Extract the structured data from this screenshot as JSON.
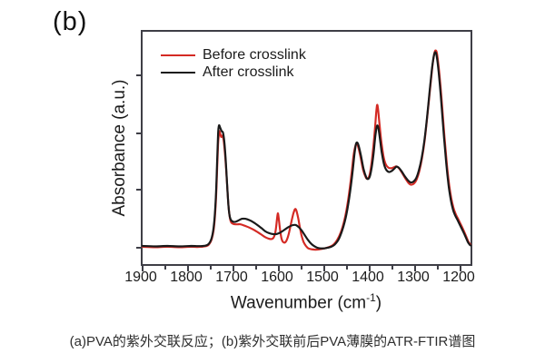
{
  "figure_label": "(b)",
  "caption": "(a)PVA的紫外交联反应；(b)紫外交联前后PVA薄膜的ATR-FTIR谱图",
  "axis_title": {
    "main": "Wavenumber (cm",
    "sup": "-1",
    "close": ")"
  },
  "colors": {
    "before_crosslink": "#d42a24",
    "after_crosslink": "#1a1a1a",
    "axis": "#3e3e46",
    "text": "#1b1b1b",
    "caption": "#2e2e2e"
  },
  "chart_data": {
    "type": "line",
    "title": "",
    "xlabel": "Wavenumber (cm⁻¹)",
    "ylabel": "Absorbance (a.u.)",
    "grid": false,
    "legend_position": "top-left",
    "x_axis": {
      "left": 1900,
      "right": 1170,
      "reversed": true,
      "major_ticks": [
        1900,
        1800,
        1700,
        1600,
        1500,
        1400,
        1300,
        1200
      ],
      "minor_ticks": [
        1850,
        1750,
        1650,
        1550,
        1450,
        1350,
        1250
      ]
    },
    "y_axis": {
      "units": "a.u.",
      "lim": [
        -0.09,
        1.09
      ],
      "ticks": [
        0.87,
        0.58,
        0.3,
        0.01
      ]
    },
    "series": [
      {
        "name": "Before crosslink",
        "color": "#d42a24",
        "points": [
          [
            1900,
            -0.002
          ],
          [
            1872,
            -0.004
          ],
          [
            1845,
            -0.002
          ],
          [
            1818,
            -0.004
          ],
          [
            1792,
            -0.002
          ],
          [
            1775,
            -0.003
          ],
          [
            1762,
            0.0
          ],
          [
            1753,
            0.008
          ],
          [
            1746,
            0.038
          ],
          [
            1741,
            0.1
          ],
          [
            1737,
            0.225
          ],
          [
            1734,
            0.4
          ],
          [
            1732,
            0.52
          ],
          [
            1730,
            0.575
          ],
          [
            1729,
            0.586
          ],
          [
            1727,
            0.57
          ],
          [
            1725,
            0.556
          ],
          [
            1723,
            0.562
          ],
          [
            1720,
            0.545
          ],
          [
            1717,
            0.48
          ],
          [
            1714,
            0.39
          ],
          [
            1711,
            0.28
          ],
          [
            1708,
            0.185
          ],
          [
            1704,
            0.128
          ],
          [
            1698,
            0.114
          ],
          [
            1690,
            0.112
          ],
          [
            1682,
            0.112
          ],
          [
            1673,
            0.105
          ],
          [
            1664,
            0.097
          ],
          [
            1655,
            0.087
          ],
          [
            1646,
            0.075
          ],
          [
            1637,
            0.062
          ],
          [
            1628,
            0.048
          ],
          [
            1620,
            0.04
          ],
          [
            1613,
            0.037
          ],
          [
            1608,
            0.046
          ],
          [
            1604,
            0.078
          ],
          [
            1601,
            0.135
          ],
          [
            1599,
            0.168
          ],
          [
            1597,
            0.143
          ],
          [
            1594,
            0.085
          ],
          [
            1591,
            0.042
          ],
          [
            1588,
            0.024
          ],
          [
            1584,
            0.019
          ],
          [
            1580,
            0.028
          ],
          [
            1575,
            0.06
          ],
          [
            1570,
            0.112
          ],
          [
            1565,
            0.162
          ],
          [
            1561,
            0.188
          ],
          [
            1558,
            0.184
          ],
          [
            1554,
            0.148
          ],
          [
            1550,
            0.098
          ],
          [
            1546,
            0.054
          ],
          [
            1542,
            0.024
          ],
          [
            1537,
            0.004
          ],
          [
            1531,
            -0.01
          ],
          [
            1523,
            -0.015
          ],
          [
            1515,
            -0.017
          ],
          [
            1507,
            -0.015
          ],
          [
            1499,
            -0.012
          ],
          [
            1491,
            -0.008
          ],
          [
            1483,
            -0.002
          ],
          [
            1475,
            0.009
          ],
          [
            1467,
            0.032
          ],
          [
            1459,
            0.07
          ],
          [
            1452,
            0.122
          ],
          [
            1446,
            0.186
          ],
          [
            1440,
            0.275
          ],
          [
            1434,
            0.386
          ],
          [
            1430,
            0.468
          ],
          [
            1426,
            0.512
          ],
          [
            1423,
            0.521
          ],
          [
            1420,
            0.505
          ],
          [
            1415,
            0.456
          ],
          [
            1409,
            0.388
          ],
          [
            1403,
            0.35
          ],
          [
            1399,
            0.344
          ],
          [
            1395,
            0.36
          ],
          [
            1391,
            0.41
          ],
          [
            1387,
            0.49
          ],
          [
            1383,
            0.59
          ],
          [
            1380,
            0.678
          ],
          [
            1378,
            0.718
          ],
          [
            1376,
            0.7
          ],
          [
            1373,
            0.63
          ],
          [
            1369,
            0.54
          ],
          [
            1364,
            0.46
          ],
          [
            1359,
            0.418
          ],
          [
            1353,
            0.4
          ],
          [
            1347,
            0.397
          ],
          [
            1341,
            0.401
          ],
          [
            1335,
            0.406
          ],
          [
            1329,
            0.396
          ],
          [
            1322,
            0.372
          ],
          [
            1315,
            0.345
          ],
          [
            1308,
            0.322
          ],
          [
            1302,
            0.313
          ],
          [
            1296,
            0.319
          ],
          [
            1290,
            0.34
          ],
          [
            1284,
            0.382
          ],
          [
            1278,
            0.448
          ],
          [
            1272,
            0.54
          ],
          [
            1266,
            0.665
          ],
          [
            1260,
            0.8
          ],
          [
            1255,
            0.912
          ],
          [
            1251,
            0.976
          ],
          [
            1248,
            0.995
          ],
          [
            1245,
            0.983
          ],
          [
            1242,
            0.933
          ],
          [
            1238,
            0.843
          ],
          [
            1233,
            0.705
          ],
          [
            1228,
            0.556
          ],
          [
            1223,
            0.425
          ],
          [
            1218,
            0.32
          ],
          [
            1213,
            0.246
          ],
          [
            1208,
            0.196
          ],
          [
            1203,
            0.164
          ],
          [
            1198,
            0.141
          ],
          [
            1192,
            0.113
          ],
          [
            1186,
            0.084
          ],
          [
            1180,
            0.052
          ],
          [
            1175,
            0.025
          ],
          [
            1171,
            0.011
          ],
          [
            1170,
            0.009
          ]
        ]
      },
      {
        "name": "After crosslink",
        "color": "#1a1a1a",
        "points": [
          [
            1900,
            0.002
          ],
          [
            1872,
            0.0
          ],
          [
            1845,
            0.002
          ],
          [
            1818,
            0.0
          ],
          [
            1792,
            0.002
          ],
          [
            1775,
            0.001
          ],
          [
            1762,
            0.003
          ],
          [
            1753,
            0.012
          ],
          [
            1746,
            0.045
          ],
          [
            1741,
            0.115
          ],
          [
            1737,
            0.25
          ],
          [
            1734,
            0.44
          ],
          [
            1732,
            0.57
          ],
          [
            1730,
            0.614
          ],
          [
            1727,
            0.601
          ],
          [
            1724,
            0.585
          ],
          [
            1721,
            0.577
          ],
          [
            1718,
            0.53
          ],
          [
            1715,
            0.44
          ],
          [
            1712,
            0.32
          ],
          [
            1709,
            0.21
          ],
          [
            1706,
            0.152
          ],
          [
            1702,
            0.13
          ],
          [
            1695,
            0.124
          ],
          [
            1687,
            0.131
          ],
          [
            1679,
            0.14
          ],
          [
            1671,
            0.14
          ],
          [
            1662,
            0.133
          ],
          [
            1653,
            0.122
          ],
          [
            1644,
            0.108
          ],
          [
            1635,
            0.092
          ],
          [
            1626,
            0.075
          ],
          [
            1617,
            0.066
          ],
          [
            1609,
            0.062
          ],
          [
            1601,
            0.063
          ],
          [
            1593,
            0.071
          ],
          [
            1585,
            0.083
          ],
          [
            1576,
            0.097
          ],
          [
            1567,
            0.107
          ],
          [
            1560,
            0.109
          ],
          [
            1553,
            0.099
          ],
          [
            1546,
            0.081
          ],
          [
            1539,
            0.057
          ],
          [
            1532,
            0.033
          ],
          [
            1525,
            0.014
          ],
          [
            1518,
            0.001
          ],
          [
            1511,
            -0.007
          ],
          [
            1504,
            -0.01
          ],
          [
            1496,
            -0.01
          ],
          [
            1488,
            -0.007
          ],
          [
            1480,
            -0.002
          ],
          [
            1472,
            0.01
          ],
          [
            1464,
            0.034
          ],
          [
            1457,
            0.072
          ],
          [
            1450,
            0.125
          ],
          [
            1444,
            0.19
          ],
          [
            1438,
            0.278
          ],
          [
            1432,
            0.39
          ],
          [
            1428,
            0.475
          ],
          [
            1425,
            0.52
          ],
          [
            1422,
            0.527
          ],
          [
            1419,
            0.511
          ],
          [
            1414,
            0.462
          ],
          [
            1408,
            0.392
          ],
          [
            1402,
            0.35
          ],
          [
            1398,
            0.342
          ],
          [
            1394,
            0.356
          ],
          [
            1390,
            0.4
          ],
          [
            1386,
            0.468
          ],
          [
            1382,
            0.558
          ],
          [
            1379,
            0.605
          ],
          [
            1377,
            0.614
          ],
          [
            1375,
            0.601
          ],
          [
            1372,
            0.552
          ],
          [
            1368,
            0.482
          ],
          [
            1363,
            0.421
          ],
          [
            1358,
            0.39
          ],
          [
            1352,
            0.378
          ],
          [
            1346,
            0.382
          ],
          [
            1340,
            0.394
          ],
          [
            1335,
            0.405
          ],
          [
            1330,
            0.4
          ],
          [
            1323,
            0.38
          ],
          [
            1316,
            0.355
          ],
          [
            1309,
            0.335
          ],
          [
            1303,
            0.325
          ],
          [
            1297,
            0.329
          ],
          [
            1291,
            0.346
          ],
          [
            1285,
            0.386
          ],
          [
            1279,
            0.446
          ],
          [
            1273,
            0.532
          ],
          [
            1267,
            0.65
          ],
          [
            1261,
            0.79
          ],
          [
            1256,
            0.9
          ],
          [
            1252,
            0.963
          ],
          [
            1249,
            0.986
          ],
          [
            1246,
            0.974
          ],
          [
            1243,
            0.928
          ],
          [
            1239,
            0.838
          ],
          [
            1234,
            0.7
          ],
          [
            1229,
            0.552
          ],
          [
            1224,
            0.42
          ],
          [
            1219,
            0.312
          ],
          [
            1214,
            0.237
          ],
          [
            1209,
            0.186
          ],
          [
            1204,
            0.156
          ],
          [
            1199,
            0.134
          ],
          [
            1193,
            0.106
          ],
          [
            1187,
            0.078
          ],
          [
            1181,
            0.048
          ],
          [
            1176,
            0.022
          ],
          [
            1172,
            0.009
          ],
          [
            1170,
            0.005
          ]
        ]
      }
    ]
  }
}
